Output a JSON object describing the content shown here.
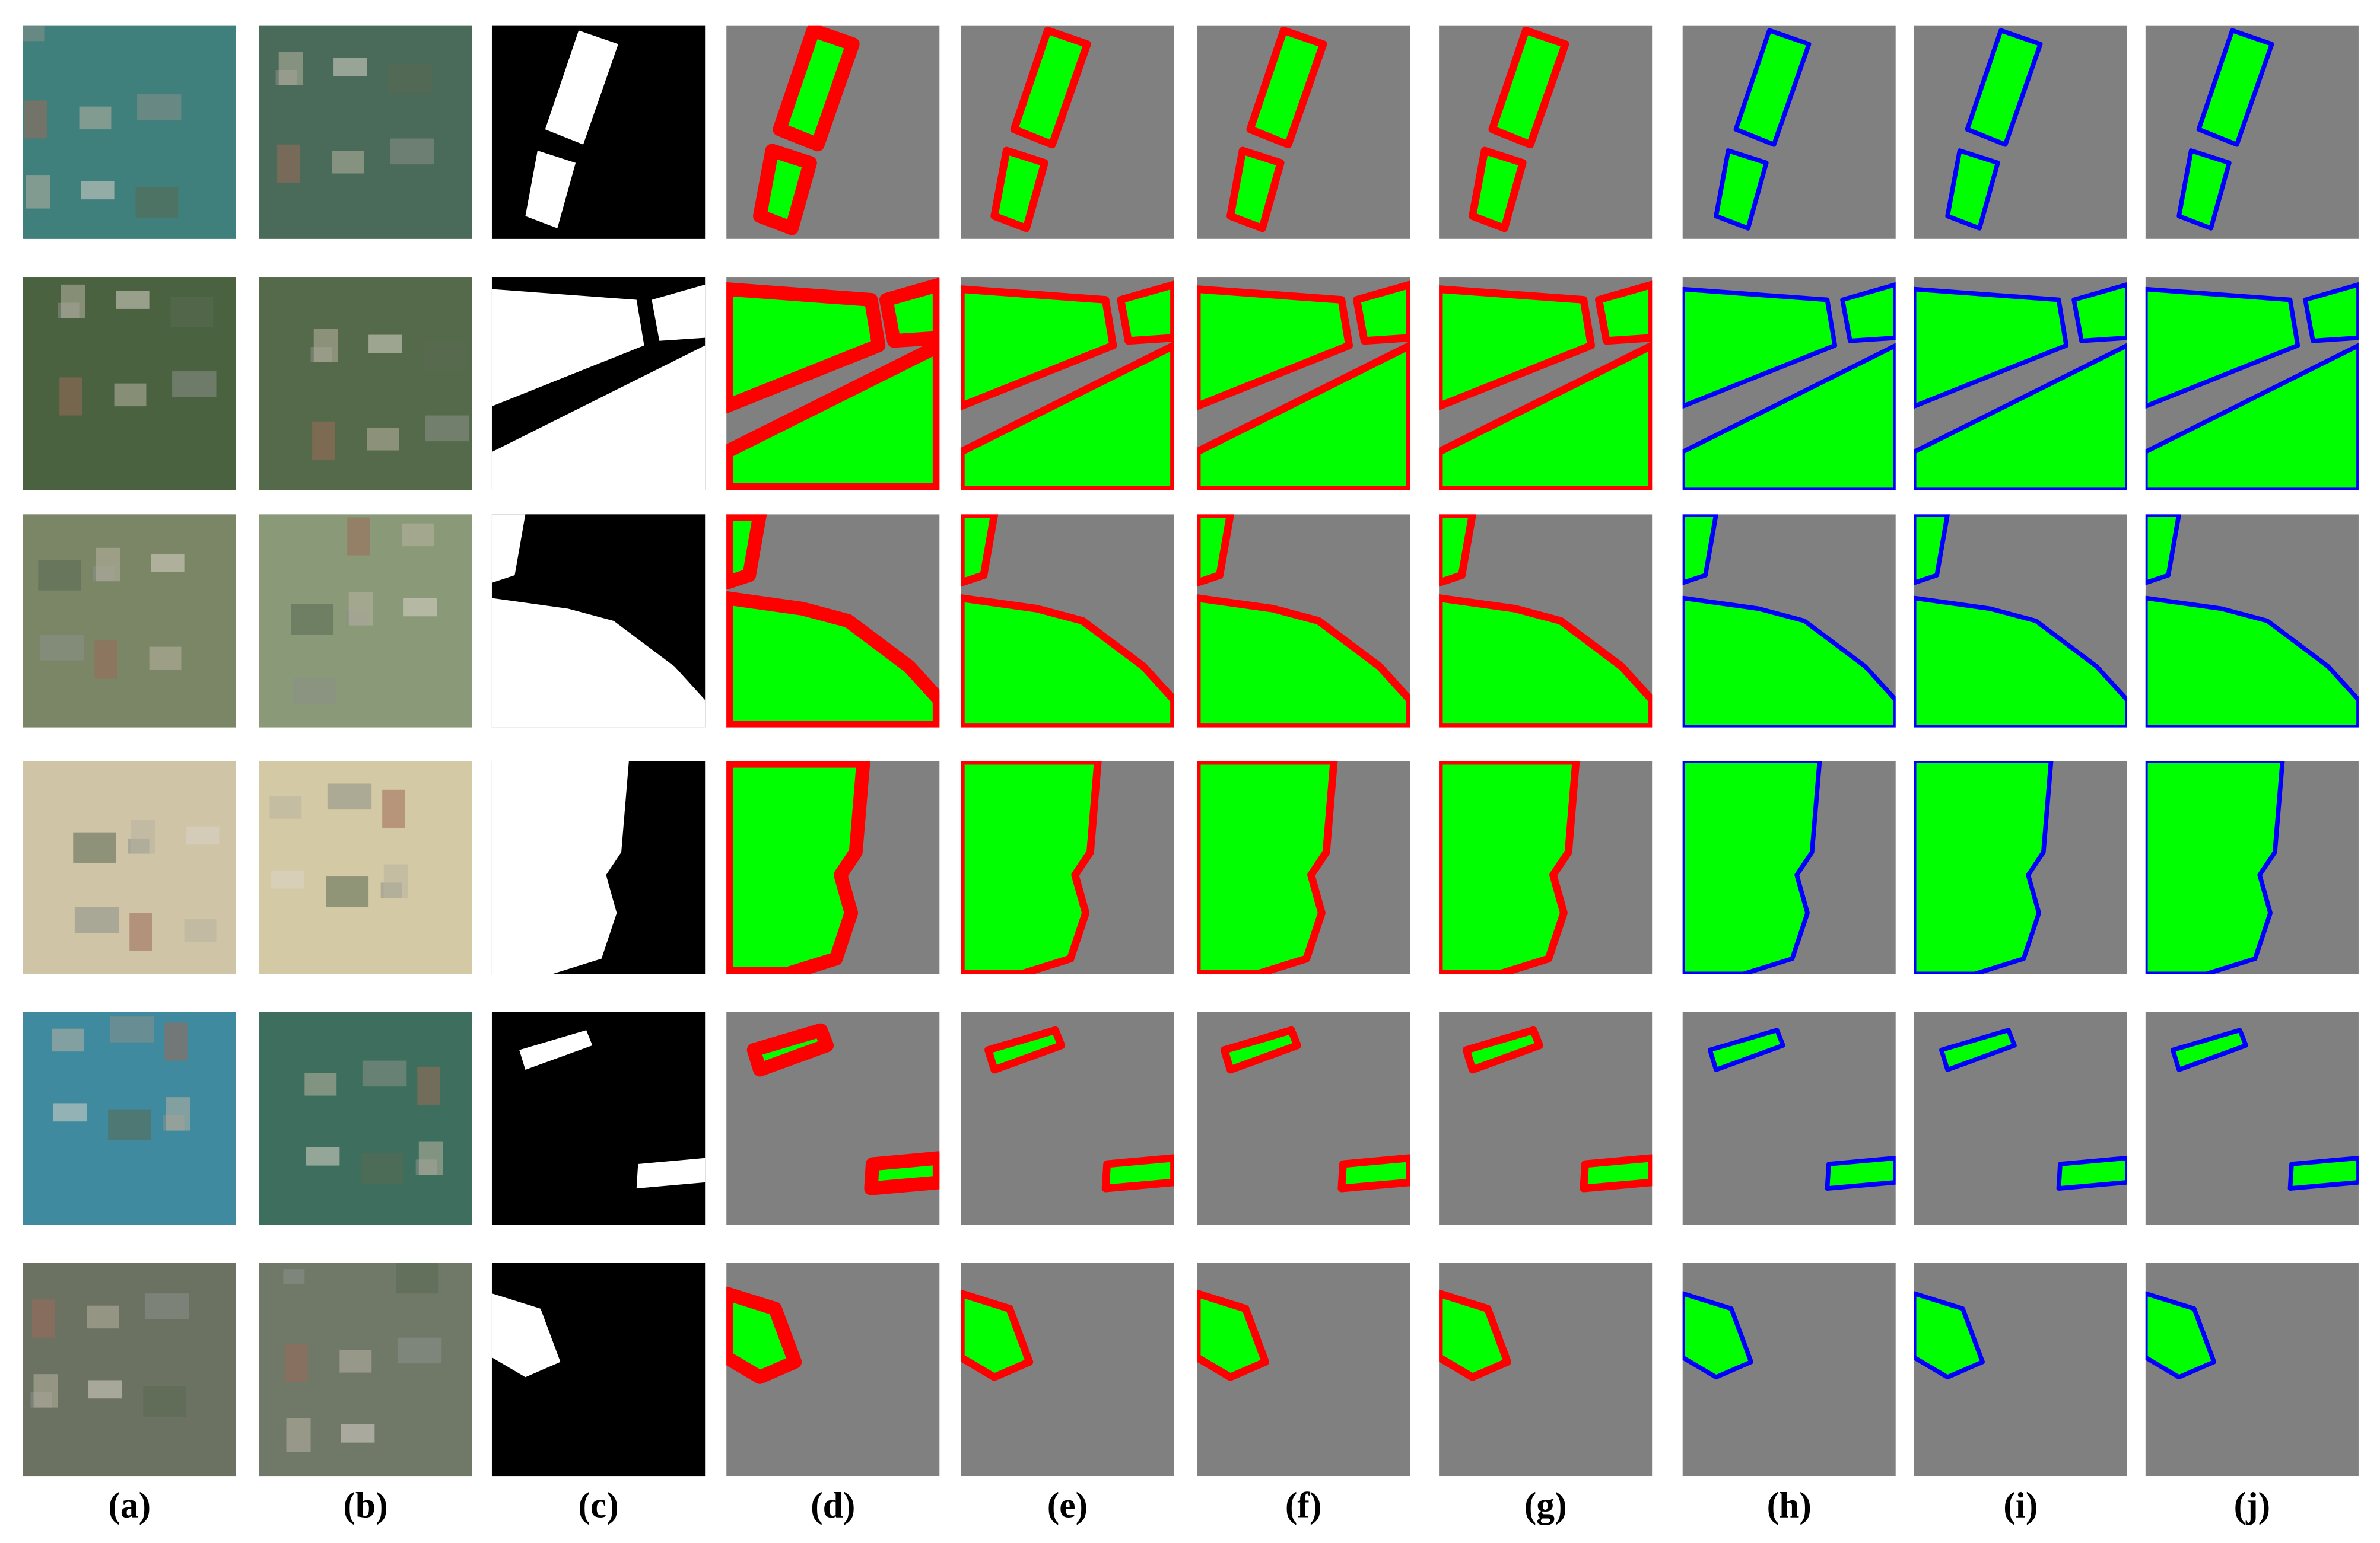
{
  "figure": {
    "labels": [
      "(a)",
      "(b)",
      "(c)",
      "(d)",
      "(e)",
      "(f)",
      "(g)",
      "(h)",
      "(i)",
      "(j)"
    ]
  }
}
